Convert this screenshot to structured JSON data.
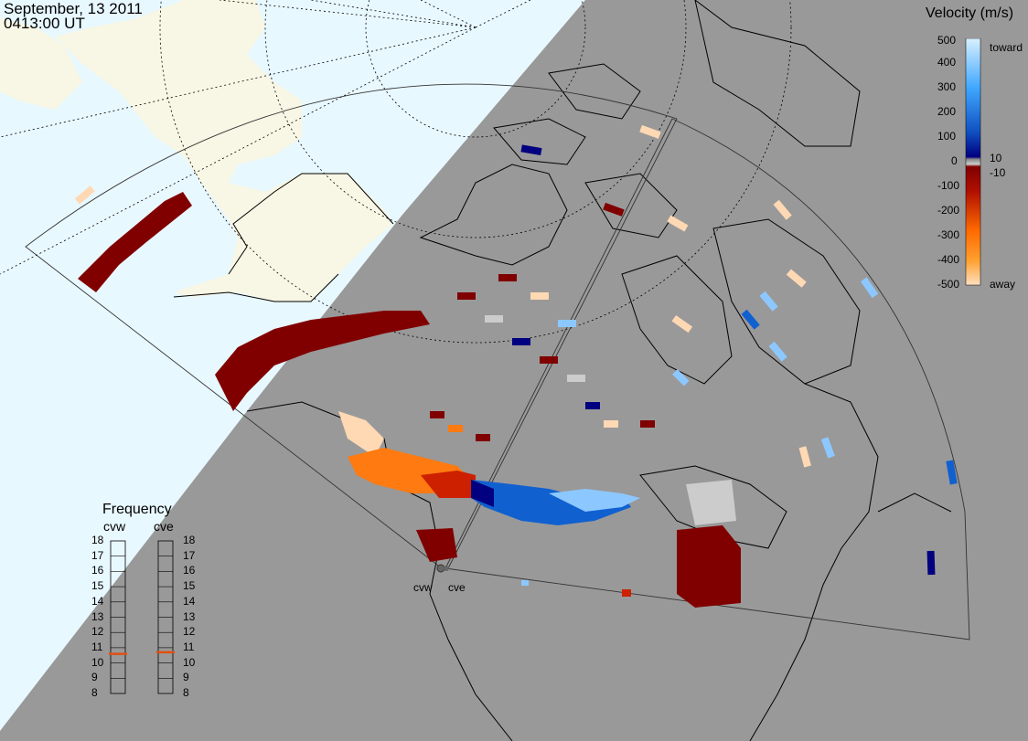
{
  "header": {
    "date": "September, 13 2011",
    "time": "0413:00 UT"
  },
  "velocity_scale": {
    "title": "Velocity (m/s)",
    "ticks": [
      "500",
      "400",
      "300",
      "200",
      "100",
      "0",
      "-100",
      "-200",
      "-300",
      "-400",
      "-500"
    ],
    "right_labels": [
      "toward",
      "10",
      "-10",
      "away"
    ],
    "colors": {
      "toward_light": "#c8e8ff",
      "toward_dark": "#000080",
      "away_dark": "#800000",
      "away_light": "#ffd8b4",
      "ground_scatter": "#cccccc"
    }
  },
  "frequency_panel": {
    "title": "Frequency",
    "radars": [
      "cvw",
      "cve"
    ],
    "ticks": [
      "18",
      "17",
      "16",
      "15",
      "14",
      "13",
      "12",
      "11",
      "10",
      "9",
      "8"
    ],
    "cvw_freq": 10.6,
    "cve_freq": 10.7,
    "marker_color": "#e05010"
  },
  "sites": [
    {
      "name": "cvw"
    },
    {
      "name": "cve"
    }
  ],
  "map_colors": {
    "night": "#999999",
    "day_ocean": "#e8f8ff",
    "day_land": "#f8f6e4"
  }
}
